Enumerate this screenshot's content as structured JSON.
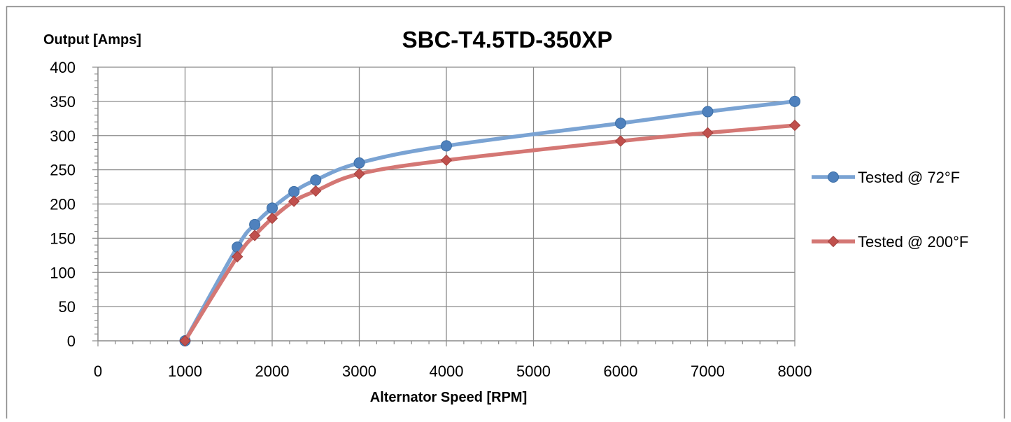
{
  "chart_data": {
    "type": "line",
    "title": "SBC-T4.5TD-350XP",
    "xlabel": "Alternator Speed [RPM]",
    "ylabel": "Output [Amps]",
    "xlim": [
      0,
      8000
    ],
    "ylim": [
      0,
      400
    ],
    "x_ticks": [
      0,
      1000,
      2000,
      3000,
      4000,
      5000,
      6000,
      7000,
      8000
    ],
    "y_ticks": [
      0,
      50,
      100,
      150,
      200,
      250,
      300,
      350,
      400
    ],
    "grid": true,
    "legend_position": "right",
    "series": [
      {
        "name": "Tested @ 72°F",
        "color": "#4f81bd",
        "line_color": "#7aa3d3",
        "marker": "circle",
        "x": [
          1000,
          1600,
          1800,
          2000,
          2250,
          2500,
          3000,
          4000,
          6000,
          7000,
          8000
        ],
        "y": [
          0,
          137,
          170,
          194,
          218,
          235,
          260,
          285,
          318,
          335,
          350
        ]
      },
      {
        "name": "Tested @ 200°F",
        "color": "#c0504d",
        "line_color": "#d47774",
        "marker": "diamond",
        "x": [
          1000,
          1600,
          1800,
          2000,
          2250,
          2500,
          3000,
          4000,
          6000,
          7000,
          8000
        ],
        "y": [
          0,
          123,
          154,
          179,
          204,
          219,
          244,
          264,
          292,
          304,
          315
        ]
      }
    ]
  }
}
